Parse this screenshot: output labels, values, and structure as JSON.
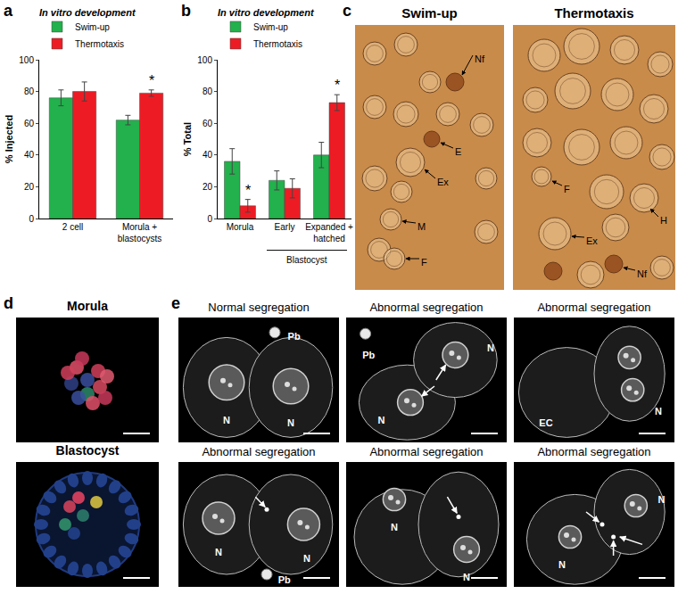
{
  "chart_data": [
    {
      "type": "bar",
      "panel_label": "a",
      "title": "In vitro development",
      "y_label": "% Injected",
      "categories": [
        "2 cell",
        "Morula + blastocysts"
      ],
      "series": [
        {
          "name": "Swim-up",
          "color": "#22b14c",
          "values": [
            76,
            62
          ],
          "errors": [
            5,
            3
          ]
        },
        {
          "name": "Thermotaxis",
          "color": "#ed1c24",
          "values": [
            80,
            79
          ],
          "errors": [
            6,
            2
          ]
        }
      ],
      "ylim": [
        0,
        100
      ],
      "yticks": [
        0,
        20,
        40,
        60,
        80,
        100
      ],
      "grid": false,
      "legend": "top left",
      "annotations": [
        {
          "text": "*",
          "category": "Morula + blastocysts",
          "series": "Thermotaxis"
        }
      ]
    },
    {
      "type": "bar",
      "panel_label": "b",
      "title": "In vitro development",
      "y_label": "% Total",
      "categories": [
        "Morula",
        "Early",
        "Expanded + hatched"
      ],
      "series": [
        {
          "name": "Swim-up",
          "color": "#22b14c",
          "values": [
            36,
            24,
            40
          ],
          "errors": [
            8,
            6,
            8
          ]
        },
        {
          "name": "Thermotaxis",
          "color": "#ed1c24",
          "values": [
            8,
            19,
            73
          ],
          "errors": [
            4,
            6,
            5
          ]
        }
      ],
      "ylim": [
        0,
        100
      ],
      "yticks": [
        0,
        20,
        40,
        60,
        80,
        100
      ],
      "grid": false,
      "legend": "top left",
      "category_groups": [
        {
          "text": "Blastocyst",
          "categories": [
            "Early",
            "Expanded + hatched"
          ]
        }
      ],
      "annotations": [
        {
          "text": "*",
          "category": "Morula",
          "series": "Thermotaxis"
        },
        {
          "text": "*",
          "category": "Expanded + hatched",
          "series": "Thermotaxis"
        }
      ]
    }
  ],
  "image_panels": [
    {
      "panel_label": "c",
      "items": [
        {
          "title": "Swim-up",
          "labels": [
            "Nf",
            "E",
            "Ex",
            "M",
            "F"
          ]
        },
        {
          "title": "Thermotaxis",
          "labels": [
            "F",
            "H",
            "Ex",
            "Nf"
          ]
        }
      ]
    },
    {
      "panel_label": "d",
      "items": [
        {
          "title": "Morula"
        },
        {
          "title": "Blastocyst"
        }
      ]
    },
    {
      "panel_label": "e",
      "items": [
        {
          "title": "Normal segregation",
          "labels": [
            "Pb",
            "N",
            "N"
          ]
        },
        {
          "title": "Abnormal segregation",
          "labels": [
            "Pb",
            "N",
            "N"
          ]
        },
        {
          "title": "Abnormal segregation",
          "labels": [
            "EC",
            "N"
          ]
        },
        {
          "title": "Abnormal segregation",
          "labels": [
            "N",
            "N",
            "Pb"
          ]
        },
        {
          "title": "Abnormal segregation",
          "labels": [
            "N",
            "N"
          ]
        },
        {
          "title": "Abnormal segregation",
          "labels": [
            "N",
            "N"
          ]
        }
      ]
    }
  ]
}
